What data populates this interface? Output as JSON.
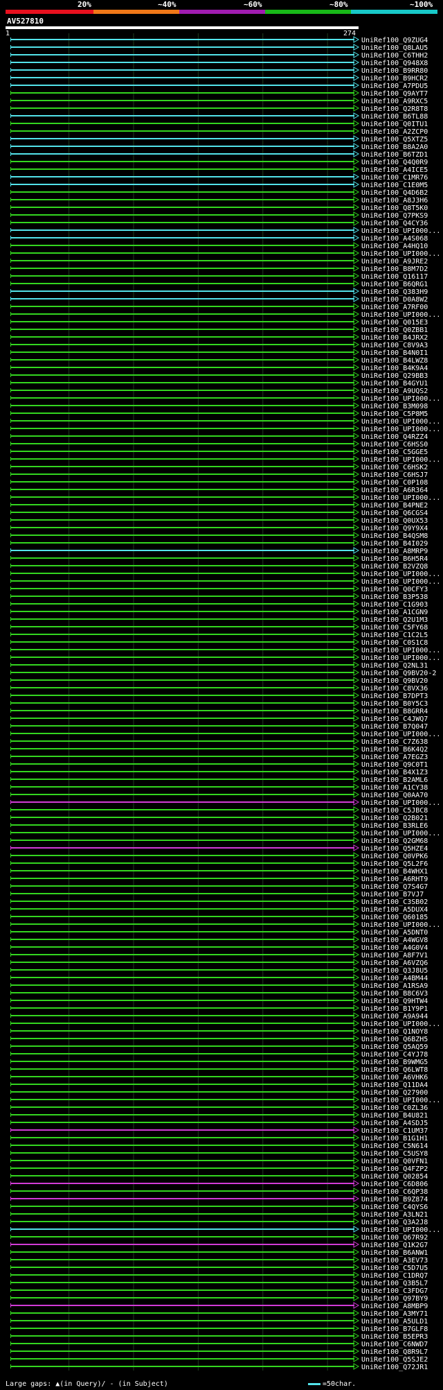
{
  "ramp": {
    "labels": [
      "20%",
      "~40%",
      "~60%",
      "~80%",
      "~100%"
    ],
    "colors": [
      "#e8101e",
      "#f07818",
      "#a01cb0",
      "#18b818",
      "#18c8c8"
    ]
  },
  "query": {
    "id": "AV527810",
    "start": "1",
    "end": "274"
  },
  "colors": {
    "green": "#33d61f",
    "cyan": "#53e3ea",
    "magenta": "#d23bd6",
    "grid": "#1f3d1f",
    "gap": "#f0ef82"
  },
  "hits": [
    {
      "label": "UniRef100_Q9ZUG4",
      "s": 5,
      "e": 274,
      "c": "cyan"
    },
    {
      "label": "UniRef100_Q8LAU5",
      "s": 5,
      "e": 274,
      "c": "cyan"
    },
    {
      "label": "UniRef100_C6THH2",
      "s": 5,
      "e": 274,
      "c": "cyan"
    },
    {
      "label": "UniRef100_Q948X8",
      "s": 5,
      "e": 274,
      "c": "cyan"
    },
    {
      "label": "UniRef100_B9RR80",
      "s": 5,
      "e": 274,
      "c": "cyan"
    },
    {
      "label": "UniRef100_B9HCR2",
      "s": 5,
      "e": 274,
      "c": "cyan"
    },
    {
      "label": "UniRef100_A7PDU5",
      "s": 5,
      "e": 274,
      "c": "cyan"
    },
    {
      "label": "UniRef100_Q9AYT7",
      "s": 5,
      "e": 274,
      "c": "green"
    },
    {
      "label": "UniRef100_A9RXC5",
      "s": 5,
      "e": 274,
      "c": "green"
    },
    {
      "label": "UniRef100_Q2R8T8",
      "s": 5,
      "e": 274,
      "c": "green"
    },
    {
      "label": "UniRef100_B6TL88",
      "s": 5,
      "e": 274,
      "c": "cyan"
    },
    {
      "label": "UniRef100_Q0ITU1",
      "s": 5,
      "e": 274,
      "c": "green"
    },
    {
      "label": "UniRef100_A2ZCP0",
      "s": 5,
      "e": 274,
      "c": "green"
    },
    {
      "label": "UniRef100_Q5XTZ5",
      "s": 5,
      "e": 274,
      "c": "cyan"
    },
    {
      "label": "UniRef100_B8A2A0",
      "s": 5,
      "e": 274,
      "c": "cyan"
    },
    {
      "label": "UniRef100_B6TZD1",
      "s": 5,
      "e": 274,
      "c": "cyan"
    },
    {
      "label": "UniRef100_Q4Q0R9",
      "s": 5,
      "e": 274,
      "c": "green"
    },
    {
      "label": "UniRef100_A4ICE5",
      "s": 5,
      "e": 274,
      "c": "green"
    },
    {
      "label": "UniRef100_C1MR76",
      "s": 5,
      "e": 274,
      "c": "cyan"
    },
    {
      "label": "UniRef100_C1E0M5",
      "s": 5,
      "e": 274,
      "c": "cyan"
    },
    {
      "label": "UniRef100_Q4D6B2",
      "s": 5,
      "e": 274,
      "c": "green"
    },
    {
      "label": "UniRef100_A8J3H6",
      "s": 5,
      "e": 274,
      "c": "green"
    },
    {
      "label": "UniRef100_Q8T5K0",
      "s": 5,
      "e": 274,
      "c": "green"
    },
    {
      "label": "UniRef100_Q7PKS9",
      "s": 5,
      "e": 274,
      "c": "green"
    },
    {
      "label": "UniRef100_Q4CY36",
      "s": 5,
      "e": 274,
      "c": "green"
    },
    {
      "label": "UniRef100_UPI000...",
      "s": 5,
      "e": 274,
      "c": "cyan"
    },
    {
      "label": "UniRef100_A4S068",
      "s": 5,
      "e": 274,
      "c": "cyan"
    },
    {
      "label": "UniRef100_A4HQ10",
      "s": 5,
      "e": 274,
      "c": "green"
    },
    {
      "label": "UniRef100_UPI000...",
      "s": 5,
      "e": 274,
      "c": "green"
    },
    {
      "label": "UniRef100_A9JRE2",
      "s": 5,
      "e": 274,
      "c": "green"
    },
    {
      "label": "UniRef100_B8M7D2",
      "s": 5,
      "e": 274,
      "c": "green"
    },
    {
      "label": "UniRef100_Q16117",
      "s": 5,
      "e": 274,
      "c": "green"
    },
    {
      "label": "UniRef100_B6QRG1",
      "s": 5,
      "e": 274,
      "c": "green"
    },
    {
      "label": "UniRef100_Q383H9",
      "s": 5,
      "e": 274,
      "c": "cyan"
    },
    {
      "label": "UniRef100_D0A8W2",
      "s": 5,
      "e": 274,
      "c": "cyan"
    },
    {
      "label": "UniRef100_A7RF00",
      "s": 5,
      "e": 274,
      "c": "green"
    },
    {
      "label": "UniRef100_UPI000...",
      "s": 5,
      "e": 274,
      "c": "green"
    },
    {
      "label": "UniRef100_Q015E3",
      "s": 5,
      "e": 274,
      "c": "green"
    },
    {
      "label": "UniRef100_Q0ZBB1",
      "s": 5,
      "e": 274,
      "c": "green"
    },
    {
      "label": "UniRef100_B4JRX2",
      "s": 5,
      "e": 274,
      "c": "green"
    },
    {
      "label": "UniRef100_C8V9A3",
      "s": 5,
      "e": 274,
      "c": "green"
    },
    {
      "label": "UniRef100_B4N0I1",
      "s": 5,
      "e": 274,
      "c": "green"
    },
    {
      "label": "UniRef100_B4LWZ8",
      "s": 5,
      "e": 274,
      "c": "green"
    },
    {
      "label": "UniRef100_B4K9A4",
      "s": 5,
      "e": 274,
      "c": "green"
    },
    {
      "label": "UniRef100_Q29BB3",
      "s": 5,
      "e": 274,
      "c": "green"
    },
    {
      "label": "UniRef100_B4GYU1",
      "s": 5,
      "e": 274,
      "c": "green"
    },
    {
      "label": "UniRef100_A9UQS2",
      "s": 5,
      "e": 274,
      "c": "green"
    },
    {
      "label": "UniRef100_UPI000...",
      "s": 5,
      "e": 274,
      "c": "green"
    },
    {
      "label": "UniRef100_B3M098",
      "s": 5,
      "e": 274,
      "c": "green"
    },
    {
      "label": "UniRef100_C5P8M5",
      "s": 5,
      "e": 274,
      "c": "green"
    },
    {
      "label": "UniRef100_UPI000...",
      "s": 5,
      "e": 274,
      "c": "green"
    },
    {
      "label": "UniRef100_UPI000...",
      "s": 5,
      "e": 274,
      "c": "green"
    },
    {
      "label": "UniRef100_Q4RZZ4",
      "s": 5,
      "e": 274,
      "c": "green"
    },
    {
      "label": "UniRef100_C6HSS0",
      "s": 5,
      "e": 274,
      "c": "green"
    },
    {
      "label": "UniRef100_C5GGE5",
      "s": 5,
      "e": 274,
      "c": "green"
    },
    {
      "label": "UniRef100_UPI000...",
      "s": 5,
      "e": 274,
      "c": "green"
    },
    {
      "label": "UniRef100_C6HSK2",
      "s": 5,
      "e": 274,
      "c": "green"
    },
    {
      "label": "UniRef100_C6HSJ7",
      "s": 5,
      "e": 274,
      "c": "green"
    },
    {
      "label": "UniRef100_C0P108",
      "s": 5,
      "e": 274,
      "c": "green"
    },
    {
      "label": "UniRef100_A6R364",
      "s": 5,
      "e": 274,
      "c": "green"
    },
    {
      "label": "UniRef100_UPI000...",
      "s": 5,
      "e": 274,
      "c": "green"
    },
    {
      "label": "UniRef100_B4PNE2",
      "s": 5,
      "e": 274,
      "c": "green"
    },
    {
      "label": "UniRef100_Q6CGS4",
      "s": 5,
      "e": 274,
      "c": "green"
    },
    {
      "label": "UniRef100_Q0UX53",
      "s": 5,
      "e": 274,
      "c": "green"
    },
    {
      "label": "UniRef100_Q9Y9X4",
      "s": 5,
      "e": 274,
      "c": "green"
    },
    {
      "label": "UniRef100_B4QSM8",
      "s": 5,
      "e": 274,
      "c": "green"
    },
    {
      "label": "UniRef100_B4I029",
      "s": 5,
      "e": 274,
      "c": "green"
    },
    {
      "label": "UniRef100_A8MRP9",
      "s": 5,
      "e": 274,
      "c": "cyan"
    },
    {
      "label": "UniRef100_B6H5R4",
      "s": 5,
      "e": 274,
      "c": "green"
    },
    {
      "label": "UniRef100_B2VZQ8",
      "s": 5,
      "e": 274,
      "c": "green"
    },
    {
      "label": "UniRef100_UPI000...",
      "s": 5,
      "e": 274,
      "c": "green"
    },
    {
      "label": "UniRef100_UPI000...",
      "s": 5,
      "e": 274,
      "c": "green"
    },
    {
      "label": "UniRef100_Q0CFY3",
      "s": 5,
      "e": 274,
      "c": "green"
    },
    {
      "label": "UniRef100_B3P538",
      "s": 5,
      "e": 274,
      "c": "green"
    },
    {
      "label": "UniRef100_C1G903",
      "s": 5,
      "e": 274,
      "c": "green"
    },
    {
      "label": "UniRef100_A1CGN9",
      "s": 5,
      "e": 274,
      "c": "green"
    },
    {
      "label": "UniRef100_Q2U1M3",
      "s": 5,
      "e": 274,
      "c": "green"
    },
    {
      "label": "UniRef100_C5FY68",
      "s": 5,
      "e": 274,
      "c": "green"
    },
    {
      "label": "UniRef100_C1C2L5",
      "s": 5,
      "e": 274,
      "c": "green"
    },
    {
      "label": "UniRef100_C0S1C8",
      "s": 5,
      "e": 274,
      "c": "green"
    },
    {
      "label": "UniRef100_UPI000...",
      "s": 5,
      "e": 274,
      "c": "green"
    },
    {
      "label": "UniRef100_UPI000...",
      "s": 5,
      "e": 274,
      "c": "green"
    },
    {
      "label": "UniRef100_Q2NL31",
      "s": 5,
      "e": 274,
      "c": "green"
    },
    {
      "label": "UniRef100_Q9BV20-2",
      "s": 5,
      "e": 274,
      "c": "green"
    },
    {
      "label": "UniRef100_Q9BV20",
      "s": 5,
      "e": 274,
      "c": "green"
    },
    {
      "label": "UniRef100_C8VX36",
      "s": 5,
      "e": 274,
      "c": "green"
    },
    {
      "label": "UniRef100_B7DPT3",
      "s": 5,
      "e": 274,
      "c": "green"
    },
    {
      "label": "UniRef100_B0Y5C3",
      "s": 5,
      "e": 274,
      "c": "green"
    },
    {
      "label": "UniRef100_B8GRR4",
      "s": 5,
      "e": 274,
      "c": "green"
    },
    {
      "label": "UniRef100_C4JWQ7",
      "s": 5,
      "e": 274,
      "c": "green"
    },
    {
      "label": "UniRef100_B7Q047",
      "s": 5,
      "e": 274,
      "c": "green"
    },
    {
      "label": "UniRef100_UPI000...",
      "s": 5,
      "e": 274,
      "c": "green"
    },
    {
      "label": "UniRef100_C7Z638",
      "s": 5,
      "e": 274,
      "c": "green"
    },
    {
      "label": "UniRef100_B6K4Q2",
      "s": 5,
      "e": 274,
      "c": "green"
    },
    {
      "label": "UniRef100_A7EGZ3",
      "s": 5,
      "e": 274,
      "c": "green"
    },
    {
      "label": "UniRef100_Q9C0T1",
      "s": 5,
      "e": 274,
      "c": "green"
    },
    {
      "label": "UniRef100_B4X1Z3",
      "s": 5,
      "e": 274,
      "c": "green"
    },
    {
      "label": "UniRef100_B2AML6",
      "s": 5,
      "e": 274,
      "c": "green"
    },
    {
      "label": "UniRef100_A1CY38",
      "s": 5,
      "e": 274,
      "c": "green"
    },
    {
      "label": "UniRef100_Q0AA70",
      "s": 5,
      "e": 274,
      "c": "green"
    },
    {
      "label": "UniRef100_UPI000...",
      "s": 5,
      "e": 274,
      "c": "magenta"
    },
    {
      "label": "UniRef100_C5JBC8",
      "s": 5,
      "e": 274,
      "c": "green"
    },
    {
      "label": "UniRef100_Q2B021",
      "s": 5,
      "e": 274,
      "c": "green"
    },
    {
      "label": "UniRef100_B3RLE6",
      "s": 5,
      "e": 274,
      "c": "green"
    },
    {
      "label": "UniRef100_UPI000...",
      "s": 5,
      "e": 274,
      "c": "green"
    },
    {
      "label": "UniRef100_Q2GM68",
      "s": 5,
      "e": 274,
      "c": "green"
    },
    {
      "label": "UniRef100_Q5HZE4",
      "s": 5,
      "e": 274,
      "c": "magenta"
    },
    {
      "label": "UniRef100_Q0VPK6",
      "s": 5,
      "e": 274,
      "c": "green"
    },
    {
      "label": "UniRef100_Q5L2F6",
      "s": 5,
      "e": 274,
      "c": "green"
    },
    {
      "label": "UniRef100_B4WHX1",
      "s": 5,
      "e": 274,
      "c": "green"
    },
    {
      "label": "UniRef100_A6RHT9",
      "s": 5,
      "e": 274,
      "c": "green"
    },
    {
      "label": "UniRef100_Q7S4G7",
      "s": 5,
      "e": 274,
      "c": "green"
    },
    {
      "label": "UniRef100_B7VJ7",
      "s": 5,
      "e": 274,
      "c": "green"
    },
    {
      "label": "UniRef100_C3SB02",
      "s": 5,
      "e": 274,
      "c": "green"
    },
    {
      "label": "UniRef100_A5DUX4",
      "s": 5,
      "e": 274,
      "c": "green"
    },
    {
      "label": "UniRef100_Q60185",
      "s": 5,
      "e": 274,
      "c": "green"
    },
    {
      "label": "UniRef100_UPI000...",
      "s": 5,
      "e": 274,
      "c": "green"
    },
    {
      "label": "UniRef100_A5DNT0",
      "s": 5,
      "e": 274,
      "c": "green"
    },
    {
      "label": "UniRef100_A4WGV8",
      "s": 5,
      "e": 274,
      "c": "green"
    },
    {
      "label": "UniRef100_A4G0V4",
      "s": 5,
      "e": 274,
      "c": "green"
    },
    {
      "label": "UniRef100_A8F7V1",
      "s": 5,
      "e": 274,
      "c": "green"
    },
    {
      "label": "UniRef100_A6VZQ6",
      "s": 5,
      "e": 274,
      "c": "green"
    },
    {
      "label": "UniRef100_Q3J8U5",
      "s": 5,
      "e": 274,
      "c": "green"
    },
    {
      "label": "UniRef100_A4BM44",
      "s": 5,
      "e": 274,
      "c": "green"
    },
    {
      "label": "UniRef100_A1RSA9",
      "s": 5,
      "e": 274,
      "c": "green"
    },
    {
      "label": "UniRef100_B8C6V3",
      "s": 5,
      "e": 274,
      "c": "green"
    },
    {
      "label": "UniRef100_Q9HTW4",
      "s": 5,
      "e": 274,
      "c": "green"
    },
    {
      "label": "UniRef100_B1Y9P1",
      "s": 5,
      "e": 274,
      "c": "green"
    },
    {
      "label": "UniRef100_A9A944",
      "s": 5,
      "e": 274,
      "c": "green"
    },
    {
      "label": "UniRef100_UPI000...",
      "s": 5,
      "e": 274,
      "c": "green"
    },
    {
      "label": "UniRef100_Q1NOY8",
      "s": 5,
      "e": 274,
      "c": "green"
    },
    {
      "label": "UniRef100_Q6BZH5",
      "s": 5,
      "e": 274,
      "c": "green"
    },
    {
      "label": "UniRef100_Q5AQ59",
      "s": 5,
      "e": 274,
      "c": "green"
    },
    {
      "label": "UniRef100_C4YJ78",
      "s": 5,
      "e": 274,
      "c": "green"
    },
    {
      "label": "UniRef100_B9WMG5",
      "s": 5,
      "e": 274,
      "c": "green"
    },
    {
      "label": "UniRef100_Q6LWT8",
      "s": 5,
      "e": 274,
      "c": "green"
    },
    {
      "label": "UniRef100_A6VHK6",
      "s": 5,
      "e": 274,
      "c": "green"
    },
    {
      "label": "UniRef100_Q11DA4",
      "s": 5,
      "e": 274,
      "c": "green"
    },
    {
      "label": "UniRef100_Q27900",
      "s": 5,
      "e": 274,
      "c": "green"
    },
    {
      "label": "UniRef100_UPI000...",
      "s": 5,
      "e": 274,
      "c": "green"
    },
    {
      "label": "UniRef100_C0ZL36",
      "s": 5,
      "e": 274,
      "c": "green"
    },
    {
      "label": "UniRef100_B4U821",
      "s": 5,
      "e": 274,
      "c": "green"
    },
    {
      "label": "UniRef100_A4SDJ5",
      "s": 5,
      "e": 274,
      "c": "green"
    },
    {
      "label": "UniRef100_C1UM37",
      "s": 5,
      "e": 274,
      "c": "magenta"
    },
    {
      "label": "UniRef100_B1G1H1",
      "s": 5,
      "e": 274,
      "c": "green"
    },
    {
      "label": "UniRef100_C5N614",
      "s": 5,
      "e": 274,
      "c": "green"
    },
    {
      "label": "UniRef100_C5USY8",
      "s": 5,
      "e": 274,
      "c": "green"
    },
    {
      "label": "UniRef100_Q0VFN1",
      "s": 5,
      "e": 274,
      "c": "green"
    },
    {
      "label": "UniRef100_Q4FZP2",
      "s": 5,
      "e": 274,
      "c": "green"
    },
    {
      "label": "UniRef100_Q02854",
      "s": 5,
      "e": 274,
      "c": "green"
    },
    {
      "label": "UniRef100_C6D806",
      "s": 5,
      "e": 274,
      "c": "magenta"
    },
    {
      "label": "UniRef100_C6QP38",
      "s": 5,
      "e": 274,
      "c": "green"
    },
    {
      "label": "UniRef100_B9Z874",
      "s": 5,
      "e": 274,
      "c": "magenta"
    },
    {
      "label": "UniRef100_C4QYS6",
      "s": 5,
      "e": 274,
      "c": "green"
    },
    {
      "label": "UniRef100_A3LN21",
      "s": 5,
      "e": 274,
      "c": "green"
    },
    {
      "label": "UniRef100_Q3A2J8",
      "s": 5,
      "e": 274,
      "c": "green"
    },
    {
      "label": "UniRef100_UPI000...",
      "s": 5,
      "e": 274,
      "c": "cyan"
    },
    {
      "label": "UniRef100_Q67R92",
      "s": 5,
      "e": 274,
      "c": "green"
    },
    {
      "label": "UniRef100_Q1K2G7",
      "s": 5,
      "e": 274,
      "c": "magenta"
    },
    {
      "label": "UniRef100_B6ANW1",
      "s": 5,
      "e": 274,
      "c": "green"
    },
    {
      "label": "UniRef100_A3EV73",
      "s": 5,
      "e": 274,
      "c": "green"
    },
    {
      "label": "UniRef100_C5D7U5",
      "s": 5,
      "e": 274,
      "c": "green"
    },
    {
      "label": "UniRef100_C1DRQ7",
      "s": 5,
      "e": 274,
      "c": "green"
    },
    {
      "label": "UniRef100_Q3B5L7",
      "s": 5,
      "e": 274,
      "c": "green"
    },
    {
      "label": "UniRef100_C3FDG7",
      "s": 5,
      "e": 274,
      "c": "green"
    },
    {
      "label": "UniRef100_Q97BY9",
      "s": 5,
      "e": 274,
      "c": "green"
    },
    {
      "label": "UniRef100_A8MBP9",
      "s": 5,
      "e": 274,
      "c": "magenta"
    },
    {
      "label": "UniRef100_A3MY71",
      "s": 5,
      "e": 274,
      "c": "green"
    },
    {
      "label": "UniRef100_A5ULD1",
      "s": 5,
      "e": 274,
      "c": "green"
    },
    {
      "label": "UniRef100_B7GLF8",
      "s": 5,
      "e": 274,
      "c": "green"
    },
    {
      "label": "UniRef100_B5EPR3",
      "s": 5,
      "e": 274,
      "c": "green"
    },
    {
      "label": "UniRef100_C6NWD7",
      "s": 5,
      "e": 274,
      "c": "green"
    },
    {
      "label": "UniRef100_Q8R9L7",
      "s": 5,
      "e": 274,
      "c": "green"
    },
    {
      "label": "UniRef100_Q5SJE2",
      "s": 5,
      "e": 274,
      "c": "green"
    },
    {
      "label": "UniRef100_Q72JR1",
      "s": 5,
      "e": 274,
      "c": "green"
    }
  ],
  "legend": {
    "left": "Large gaps: ▲(in Query)/ - (in Subject)",
    "right": "=50char."
  }
}
